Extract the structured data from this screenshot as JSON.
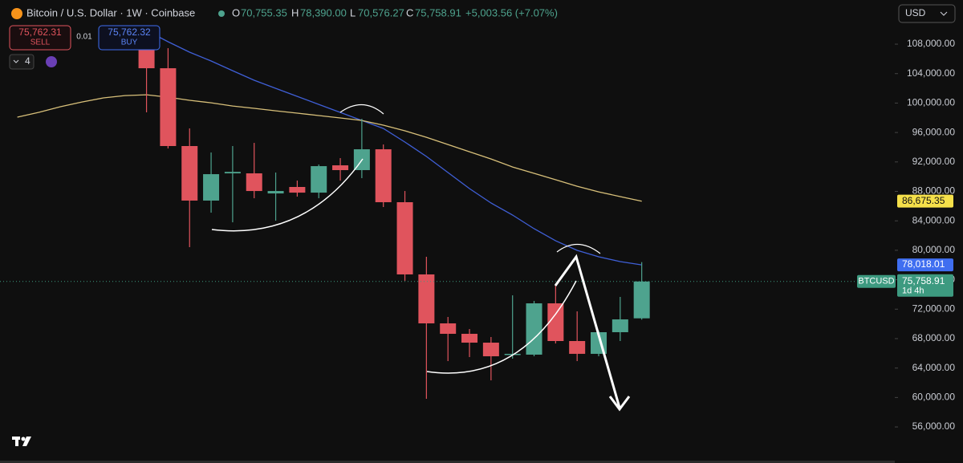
{
  "header": {
    "symbol": "Bitcoin / U.S. Dollar · 1W · Coinbase",
    "o_key": "O",
    "o": "70,755.35",
    "h_key": "H",
    "h": "78,390.00",
    "l_key": "L",
    "l": "70,576.27",
    "c_key": "C",
    "c": "75,758.91",
    "change": "+5,003.56 (+7.07%)",
    "sell_price": "75,762.31",
    "sell": "SELL",
    "spread": "0.01",
    "buy_price": "75,762.32",
    "buy": "BUY",
    "indicators": "4",
    "currency": "USD"
  },
  "chart_data": {
    "type": "candlestick",
    "categories": [
      null,
      null,
      null,
      null,
      null,
      null,
      null,
      null,
      null,
      null,
      null,
      null,
      null,
      null,
      null,
      null,
      null,
      null,
      null,
      null,
      null,
      null,
      null,
      null,
      null,
      null,
      null,
      null,
      null,
      null
    ],
    "open": [
      null,
      null,
      null,
      null,
      null,
      null,
      107455,
      104730,
      94160,
      86750,
      90450,
      90450,
      87720,
      88600,
      87830,
      91540,
      90890,
      93720,
      86530,
      76720,
      70070,
      68650,
      67450,
      65820,
      65820,
      72790,
      67670,
      65930,
      68870,
      70755.35
    ],
    "high": [
      null,
      null,
      null,
      null,
      null,
      null,
      108000,
      107455,
      96555,
      93285,
      94160,
      94590,
      90560,
      89470,
      91650,
      92520,
      97860,
      94375,
      88050,
      79115,
      70940,
      69300,
      68215,
      73880,
      73120,
      75300,
      71700,
      69090,
      73665,
      78390
    ],
    "low": [
      null,
      null,
      null,
      null,
      null,
      null,
      98740,
      93830,
      80420,
      85110,
      83800,
      87070,
      84020,
      87290,
      87070,
      89470,
      89800,
      85875,
      75850,
      59820,
      64945,
      65490,
      62330,
      65270,
      65600,
      67340,
      64945,
      65600,
      67670,
      70576.27
    ],
    "close": [
      null,
      null,
      null,
      null,
      null,
      null,
      104730,
      94160,
      86750,
      90340,
      90650,
      88050,
      88050,
      87830,
      91430,
      90890,
      93720,
      86530,
      76720,
      70070,
      68650,
      67450,
      65600,
      65930,
      72790,
      67670,
      65930,
      68870,
      70610,
      75758.91
    ],
    "up_color": "#4ea38e",
    "down_color": "#e0545d",
    "lines": [
      {
        "color": "#3f5fd6",
        "values": [
          null,
          null,
          null,
          null,
          null,
          null,
          109850,
          108330,
          106910,
          105710,
          104400,
          103100,
          102000,
          100910,
          99820,
          98730,
          97640,
          96550,
          94700,
          92740,
          90560,
          88380,
          86420,
          84780,
          82930,
          81290,
          79990,
          79120,
          78460,
          78018.01
        ]
      },
      {
        "color": "#d8c07a",
        "values": [
          98080,
          98735,
          99500,
          100150,
          100700,
          101020,
          101130,
          100800,
          100370,
          100040,
          99600,
          99280,
          98950,
          98630,
          98300,
          97970,
          97640,
          96990,
          96230,
          95350,
          94370,
          93390,
          92410,
          91320,
          90450,
          89580,
          88700,
          87940,
          87290,
          86675.35
        ]
      }
    ],
    "price_labels": [
      {
        "value": 86675.35,
        "label": "86,675.35",
        "color": "#f5e04a",
        "text_color": "#111111"
      },
      {
        "value": 78018.01,
        "label": "78,018.01",
        "color": "#3f6ef0",
        "text_color": "#ffffff"
      },
      {
        "value": 75758.91,
        "label": "75,758.91",
        "sub": "1d 4h",
        "name": "BTCUSD",
        "color": "#3d9a80",
        "text_color": "#ffffff"
      }
    ],
    "ylim": [
      51100,
      114000
    ],
    "yticks": [
      {
        "value": 56000,
        "label": "56,000.00"
      },
      {
        "value": 60000,
        "label": "60,000.00"
      },
      {
        "value": 64000,
        "label": "64,000.00"
      },
      {
        "value": 68000,
        "label": "68,000.00"
      },
      {
        "value": 72000,
        "label": "72,000.00"
      },
      {
        "value": 76000,
        "label": "76,000.00"
      },
      {
        "value": 80000,
        "label": "80,000.00"
      },
      {
        "value": 84000,
        "label": "84,000.00"
      },
      {
        "value": 88000,
        "label": "88,000.00"
      },
      {
        "value": 92000,
        "label": "92,000.00"
      },
      {
        "value": 96000,
        "label": "96,000.00"
      },
      {
        "value": 100000,
        "label": "100,000.00"
      },
      {
        "value": 104000,
        "label": "104,000.00"
      },
      {
        "value": 108000,
        "label": "108,000.00"
      }
    ]
  }
}
